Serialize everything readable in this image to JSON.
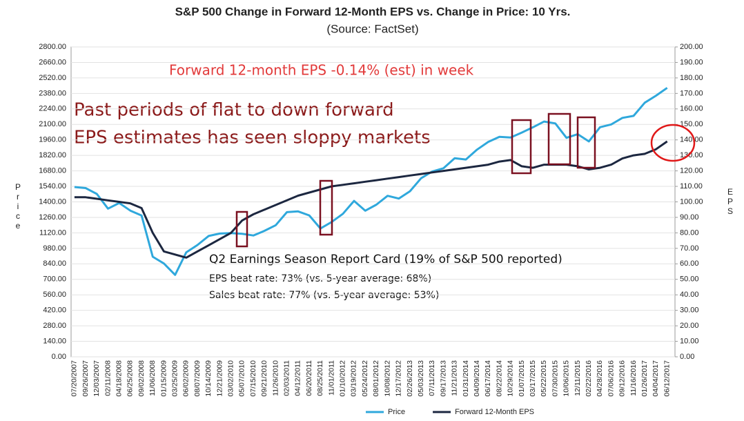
{
  "chart_data": {
    "type": "line",
    "title": "S&P 500 Change in Forward 12-Month EPS vs. Change in Price: 10 Yrs.",
    "subtitle": "(Source: FactSet)",
    "y_label": "Price",
    "y2_label": "EPS",
    "annotations": [
      "Forward 12-month EPS -0.14% (est) in week",
      "Past periods of flat to down forward",
      "EPS estimates has seen sloppy markets",
      "Q2 Earnings Season Report Card (19% of S&P 500 reported)",
      "EPS beat rate: 73% (vs. 5-year average: 68%)",
      "Sales beat rate: 77% (vs. 5-year average: 53%)"
    ],
    "categories": [
      "07/20/2007",
      "09/26/2007",
      "12/03/2007",
      "02/11/2008",
      "04/18/2008",
      "06/25/2008",
      "09/02/2008",
      "11/06/2008",
      "01/15/2009",
      "03/25/2009",
      "06/02/2009",
      "08/07/2009",
      "10/14/2009",
      "12/21/2009",
      "03/02/2010",
      "05/07/2010",
      "07/15/2010",
      "09/21/2010",
      "11/26/2010",
      "02/03/2011",
      "04/12/2011",
      "06/20/2011",
      "08/25/2011",
      "11/01/2011",
      "01/10/2012",
      "03/19/2012",
      "05/24/2012",
      "08/01/2012",
      "10/08/2012",
      "12/17/2012",
      "02/26/2013",
      "05/03/2013",
      "07/11/2013",
      "09/17/2013",
      "11/21/2013",
      "01/31/2014",
      "04/09/2014",
      "06/17/2014",
      "08/22/2014",
      "10/29/2014",
      "01/07/2015",
      "03/17/2015",
      "05/22/2015",
      "07/30/2015",
      "10/06/2015",
      "12/11/2015",
      "02/22/2016",
      "04/28/2016",
      "07/06/2016",
      "09/12/2016",
      "11/16/2016",
      "01/26/2017",
      "04/04/2017",
      "06/12/2017"
    ],
    "series": [
      {
        "name": "Price",
        "color": "#2fa8dc",
        "values": [
          1534,
          1525,
          1472,
          1339,
          1390,
          1321,
          1277,
          904,
          843,
          740,
          944,
          1010,
          1092,
          1114,
          1118,
          1111,
          1096,
          1139,
          1189,
          1307,
          1314,
          1278,
          1159,
          1218,
          1292,
          1409,
          1320,
          1375,
          1455,
          1430,
          1496,
          1614,
          1675,
          1704,
          1795,
          1783,
          1872,
          1942,
          1988,
          1982,
          2026,
          2074,
          2126,
          2109,
          1979,
          2012,
          1946,
          2075,
          2100,
          2159,
          2177,
          2296,
          2360,
          2430
        ]
      },
      {
        "name": "Forward 12-Month EPS",
        "color": "#1c2740",
        "axis": "y2",
        "values": [
          103,
          103,
          102,
          101,
          100,
          99,
          96,
          80,
          68,
          66,
          64,
          68,
          72,
          76,
          80,
          88,
          92,
          95,
          98,
          101,
          104,
          106,
          108,
          110,
          111,
          112,
          113,
          114,
          115,
          116,
          117,
          118,
          119,
          120,
          121,
          122,
          123,
          124,
          126,
          127,
          123,
          122,
          124,
          124,
          124,
          123,
          121,
          122,
          124,
          128,
          130,
          131,
          134,
          139
        ]
      }
    ],
    "ylim": [
      0,
      2800
    ],
    "yticks": [
      {
        "value": 0,
        "label": "0.00"
      },
      {
        "value": 140,
        "label": "140.00"
      },
      {
        "value": 280,
        "label": "280.00"
      },
      {
        "value": 420,
        "label": "420.00"
      },
      {
        "value": 560,
        "label": "560.00"
      },
      {
        "value": 700,
        "label": "700.00"
      },
      {
        "value": 840,
        "label": "840.00"
      },
      {
        "value": 980,
        "label": "980.00"
      },
      {
        "value": 1120,
        "label": "1120.00"
      },
      {
        "value": 1260,
        "label": "1260.00"
      },
      {
        "value": 1400,
        "label": "1400.00"
      },
      {
        "value": 1540,
        "label": "1540.00"
      },
      {
        "value": 1680,
        "label": "1680.00"
      },
      {
        "value": 1820,
        "label": "1820.00"
      },
      {
        "value": 1960,
        "label": "1960.00"
      },
      {
        "value": 2100,
        "label": "2100.00"
      },
      {
        "value": 2240,
        "label": "2240.00"
      },
      {
        "value": 2380,
        "label": "2380.00"
      },
      {
        "value": 2520,
        "label": "2520.00"
      },
      {
        "value": 2660,
        "label": "2660.00"
      },
      {
        "value": 2800,
        "label": "2800.00"
      }
    ],
    "y2lim": [
      0,
      200
    ],
    "y2ticks": [
      {
        "value": 0,
        "label": "0.00"
      },
      {
        "value": 10,
        "label": "10.00"
      },
      {
        "value": 20,
        "label": "20.00"
      },
      {
        "value": 30,
        "label": "30.00"
      },
      {
        "value": 40,
        "label": "40.00"
      },
      {
        "value": 50,
        "label": "50.00"
      },
      {
        "value": 60,
        "label": "60.00"
      },
      {
        "value": 70,
        "label": "70.00"
      },
      {
        "value": 80,
        "label": "80.00"
      },
      {
        "value": 90,
        "label": "90.00"
      },
      {
        "value": 100,
        "label": "100.00"
      },
      {
        "value": 110,
        "label": "110.00"
      },
      {
        "value": 120,
        "label": "120.00"
      },
      {
        "value": 130,
        "label": "130.00"
      },
      {
        "value": 140,
        "label": "140.00"
      },
      {
        "value": 150,
        "label": "150.00"
      },
      {
        "value": 160,
        "label": "160.00"
      },
      {
        "value": 170,
        "label": "170.00"
      },
      {
        "value": 180,
        "label": "180.00"
      },
      {
        "value": 190,
        "label": "190.00"
      },
      {
        "value": 200,
        "label": "200.00"
      }
    ],
    "grid": true,
    "legend": "bottom"
  }
}
